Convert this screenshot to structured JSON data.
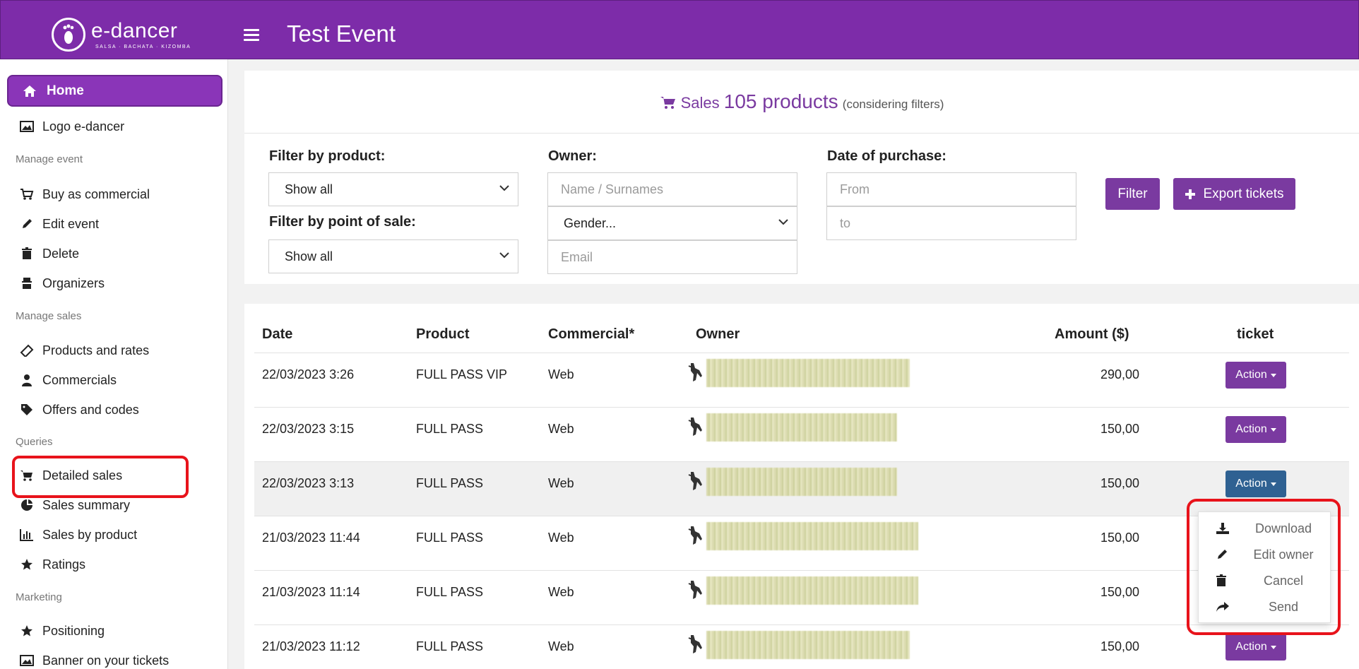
{
  "header": {
    "logo_text": "e-dancer",
    "logo_sub": "SALSA · BACHATA · KIZOMBA",
    "title": "Test Event"
  },
  "sidebar": {
    "home": "Home",
    "logo_item": "Logo e-dancer",
    "sections": {
      "manage_event": "Manage event",
      "manage_sales": "Manage sales",
      "queries": "Queries",
      "marketing": "Marketing"
    },
    "manage_event_items": [
      "Buy as commercial",
      "Edit event",
      "Delete",
      "Organizers"
    ],
    "manage_sales_items": [
      "Products and rates",
      "Commercials",
      "Offers and codes"
    ],
    "queries_items": [
      "Detailed sales",
      "Sales summary",
      "Sales by product",
      "Ratings"
    ],
    "marketing_items": [
      "Positioning",
      "Banner on your tickets"
    ]
  },
  "sales_header": {
    "prefix": "Sales",
    "count": "105 products",
    "note": "(considering filters)"
  },
  "filters": {
    "product_label": "Filter by product:",
    "product_value": "Show all",
    "pos_label": "Filter by point of sale:",
    "pos_value": "Show all",
    "owner_label": "Owner:",
    "name_placeholder": "Name / Surnames",
    "gender_value": "Gender...",
    "email_placeholder": "Email",
    "date_label": "Date of purchase:",
    "from_placeholder": "From",
    "to_placeholder": "to",
    "filter_button": "Filter",
    "export_button": "Export tickets"
  },
  "table": {
    "headers": [
      "Date",
      "Product",
      "Commercial*",
      "Owner",
      "Amount ($)",
      "ticket"
    ],
    "action_label": "Action",
    "rows": [
      {
        "date": "22/03/2023 3:26",
        "product": "FULL PASS VIP",
        "commercial": "Web",
        "amount": "290,00"
      },
      {
        "date": "22/03/2023 3:15",
        "product": "FULL PASS",
        "commercial": "Web",
        "amount": "150,00"
      },
      {
        "date": "22/03/2023 3:13",
        "product": "FULL PASS",
        "commercial": "Web",
        "amount": "150,00"
      },
      {
        "date": "21/03/2023 11:44",
        "product": "FULL PASS",
        "commercial": "Web",
        "amount": "150,00"
      },
      {
        "date": "21/03/2023 11:14",
        "product": "FULL PASS",
        "commercial": "Web",
        "amount": "150,00"
      },
      {
        "date": "21/03/2023 11:12",
        "product": "FULL PASS",
        "commercial": "Web",
        "amount": "150,00"
      }
    ]
  },
  "dropdown": {
    "items": [
      "Download",
      "Edit owner",
      "Cancel",
      "Send"
    ]
  },
  "colors": {
    "brand": "#7d2ca9",
    "button": "#7a3aa0",
    "active_button": "#2f6192",
    "highlight": "#e8131b"
  }
}
